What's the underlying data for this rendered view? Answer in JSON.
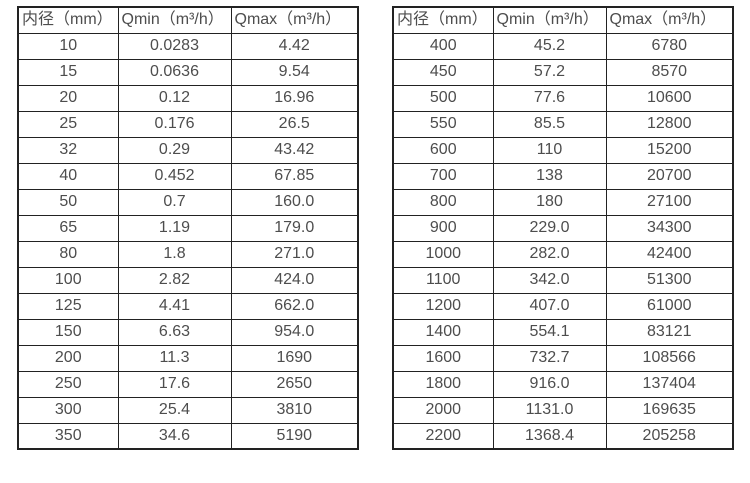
{
  "colors": {
    "background": "#ffffff",
    "border": "#222222",
    "text": "#4d4d4d"
  },
  "table_left": {
    "headers": [
      "内径（mm）",
      "Qmin（m³/h）",
      "Qmax（m³/h）"
    ],
    "rows": [
      [
        "10",
        "0.0283",
        "4.42"
      ],
      [
        "15",
        "0.0636",
        "9.54"
      ],
      [
        "20",
        "0.12",
        "16.96"
      ],
      [
        "25",
        "0.176",
        "26.5"
      ],
      [
        "32",
        "0.29",
        "43.42"
      ],
      [
        "40",
        "0.452",
        "67.85"
      ],
      [
        "50",
        "0.7",
        "160.0"
      ],
      [
        "65",
        "1.19",
        "179.0"
      ],
      [
        "80",
        "1.8",
        "271.0"
      ],
      [
        "100",
        "2.82",
        "424.0"
      ],
      [
        "125",
        "4.41",
        "662.0"
      ],
      [
        "150",
        "6.63",
        "954.0"
      ],
      [
        "200",
        "11.3",
        "1690"
      ],
      [
        "250",
        "17.6",
        "2650"
      ],
      [
        "300",
        "25.4",
        "3810"
      ],
      [
        "350",
        "34.6",
        "5190"
      ]
    ]
  },
  "table_right": {
    "headers": [
      "内径（mm）",
      "Qmin（m³/h）",
      "Qmax（m³/h）"
    ],
    "rows": [
      [
        "400",
        "45.2",
        "6780"
      ],
      [
        "450",
        "57.2",
        "8570"
      ],
      [
        "500",
        "77.6",
        "10600"
      ],
      [
        "550",
        "85.5",
        "12800"
      ],
      [
        "600",
        "110",
        "15200"
      ],
      [
        "700",
        "138",
        "20700"
      ],
      [
        "800",
        "180",
        "27100"
      ],
      [
        "900",
        "229.0",
        "34300"
      ],
      [
        "1000",
        "282.0",
        "42400"
      ],
      [
        "1100",
        "342.0",
        "51300"
      ],
      [
        "1200",
        "407.0",
        "61000"
      ],
      [
        "1400",
        "554.1",
        "83121"
      ],
      [
        "1600",
        "732.7",
        "108566"
      ],
      [
        "1800",
        "916.0",
        "137404"
      ],
      [
        "2000",
        "1131.0",
        "169635"
      ],
      [
        "2200",
        "1368.4",
        "205258"
      ]
    ]
  }
}
